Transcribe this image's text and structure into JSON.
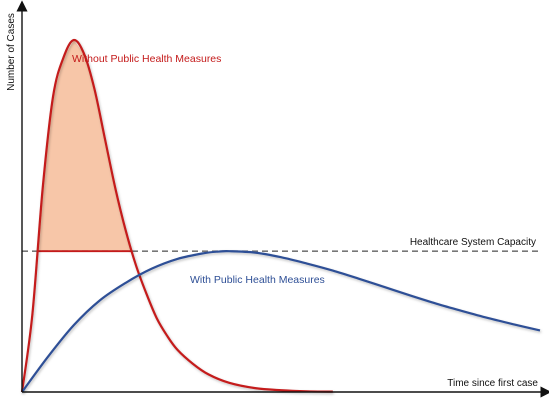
{
  "chart_data": {
    "type": "line",
    "title": "",
    "xlabel": "Time since first case",
    "ylabel": "Number of Cases",
    "xlim": [
      0,
      100
    ],
    "ylim": [
      0,
      100
    ],
    "grid": false,
    "capacity": {
      "label": "Healthcare System Capacity",
      "value": 40
    },
    "series": [
      {
        "name": "Without Public Health Measures",
        "color": "#c41a1a",
        "shape": "sharp early peak with fast decay",
        "x": [
          0,
          2,
          4,
          6,
          8,
          10,
          12,
          14,
          16,
          18,
          20,
          22,
          24,
          26,
          28,
          30,
          33,
          36,
          40,
          45,
          50,
          55,
          60
        ],
        "values": [
          0,
          22,
          58,
          84,
          95,
          100,
          96,
          86,
          72,
          58,
          46,
          36,
          28,
          21,
          16,
          12,
          8,
          5,
          2.6,
          1.1,
          0.5,
          0.2,
          0.1
        ]
      },
      {
        "name": "With Public Health Measures",
        "color": "#2e4f96",
        "shape": "slow broad curve peaking at capacity",
        "x": [
          0,
          5,
          10,
          15,
          20,
          25,
          30,
          35,
          38,
          40,
          45,
          50,
          55,
          60,
          65,
          70,
          75,
          80,
          85,
          90,
          95,
          100
        ],
        "values": [
          0,
          10,
          19,
          26,
          31,
          35,
          37.8,
          39.4,
          39.9,
          40,
          39.6,
          38.3,
          36.5,
          34.5,
          32.2,
          29.8,
          27.4,
          25.1,
          23,
          21,
          19.2,
          17.5
        ]
      }
    ],
    "colors": {
      "axis": "#111111",
      "capacity_line": "#777777",
      "shaded_area": "#f7c6a8"
    }
  }
}
